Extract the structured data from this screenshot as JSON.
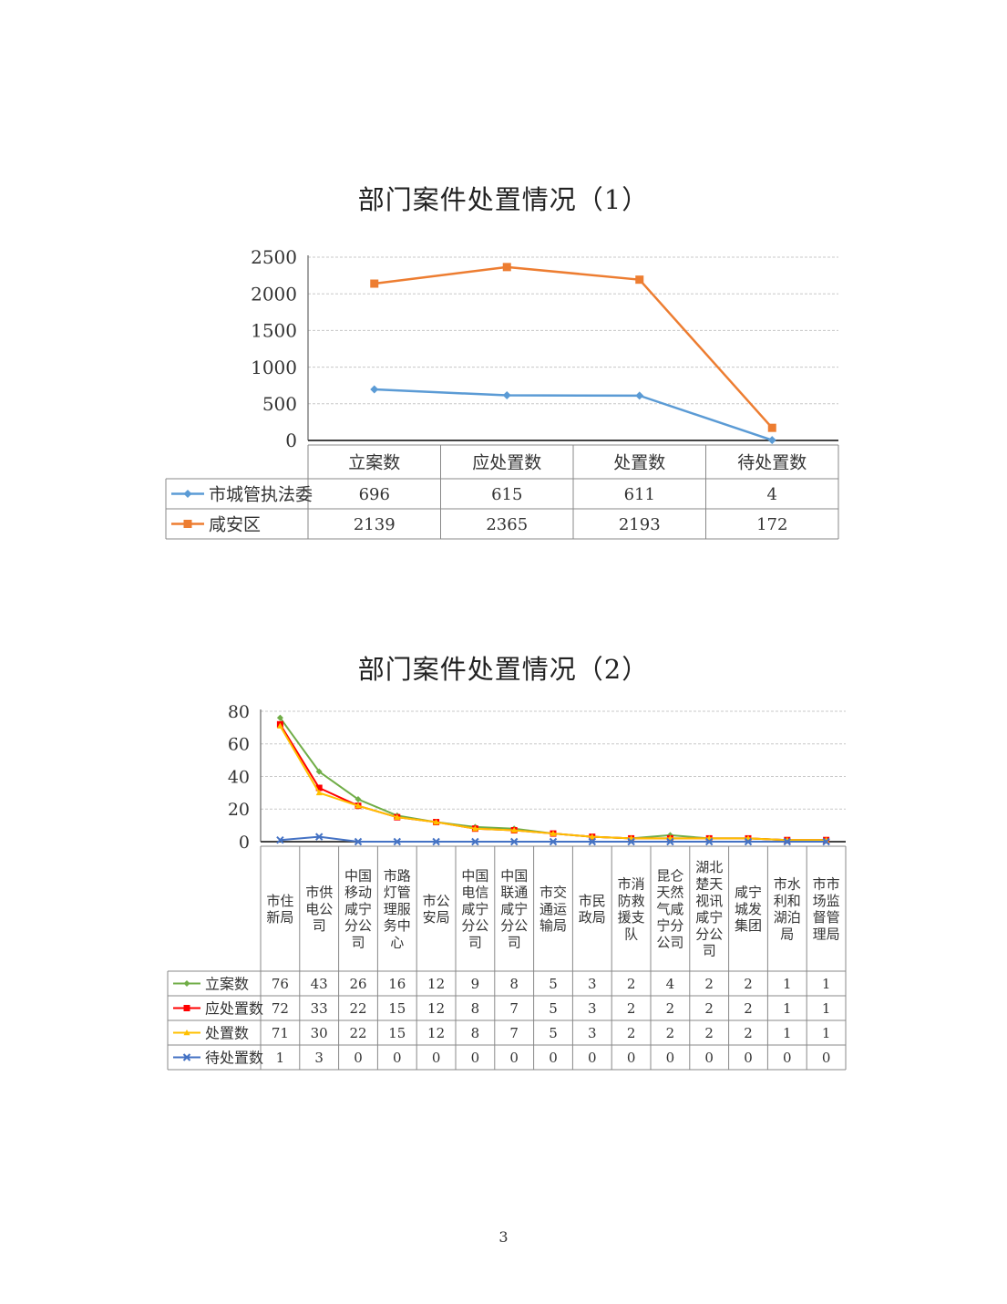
{
  "chart_data": [
    {
      "type": "line",
      "title": "部门案件处置情况（1）",
      "categories": [
        "立案数",
        "应处置数",
        "处置数",
        "待处置数"
      ],
      "ylim": [
        0,
        2500
      ],
      "yticks": [
        0,
        500,
        1000,
        1500,
        2000,
        2500
      ],
      "grid": true,
      "legend": "data-table-left",
      "series": [
        {
          "name": "市城管执法委",
          "values": [
            696,
            615,
            611,
            4
          ],
          "color": "#5b9bd5",
          "marker": "diamond"
        },
        {
          "name": "咸安区",
          "values": [
            2139,
            2365,
            2193,
            172
          ],
          "color": "#ed7d31",
          "marker": "square"
        }
      ]
    },
    {
      "type": "line",
      "title": "部门案件处置情况（2）",
      "categories": [
        "市住新局",
        "市供电公司",
        "中国移动咸宁分公司",
        "市路灯管理服务中心",
        "市公安局",
        "中国电信咸宁分公司",
        "中国联通咸宁分公司",
        "市交通运输局",
        "市民政局",
        "市消防救援支队",
        "昆仑天然气咸宁分公司",
        "湖北楚天视讯咸宁分公司",
        "咸宁城发集团",
        "市水利和湖泊局",
        "市市场监督管理局"
      ],
      "ylim": [
        0,
        80
      ],
      "yticks": [
        0,
        20,
        40,
        60,
        80
      ],
      "grid": true,
      "legend": "data-table-left",
      "series": [
        {
          "name": "立案数",
          "values": [
            76,
            43,
            26,
            16,
            12,
            9,
            8,
            5,
            3,
            2,
            4,
            2,
            2,
            1,
            1
          ],
          "color": "#70ad47",
          "marker": "diamond"
        },
        {
          "name": "应处置数",
          "values": [
            72,
            33,
            22,
            15,
            12,
            8,
            7,
            5,
            3,
            2,
            2,
            2,
            2,
            1,
            1
          ],
          "color": "#ff0000",
          "marker": "square"
        },
        {
          "name": "处置数",
          "values": [
            71,
            30,
            22,
            15,
            12,
            8,
            7,
            5,
            3,
            2,
            2,
            2,
            2,
            1,
            1
          ],
          "color": "#ffc000",
          "marker": "triangle"
        },
        {
          "name": "待处置数",
          "values": [
            1,
            3,
            0,
            0,
            0,
            0,
            0,
            0,
            0,
            0,
            0,
            0,
            0,
            0,
            0
          ],
          "color": "#4472c4",
          "marker": "x"
        }
      ]
    }
  ],
  "page_number": "3"
}
